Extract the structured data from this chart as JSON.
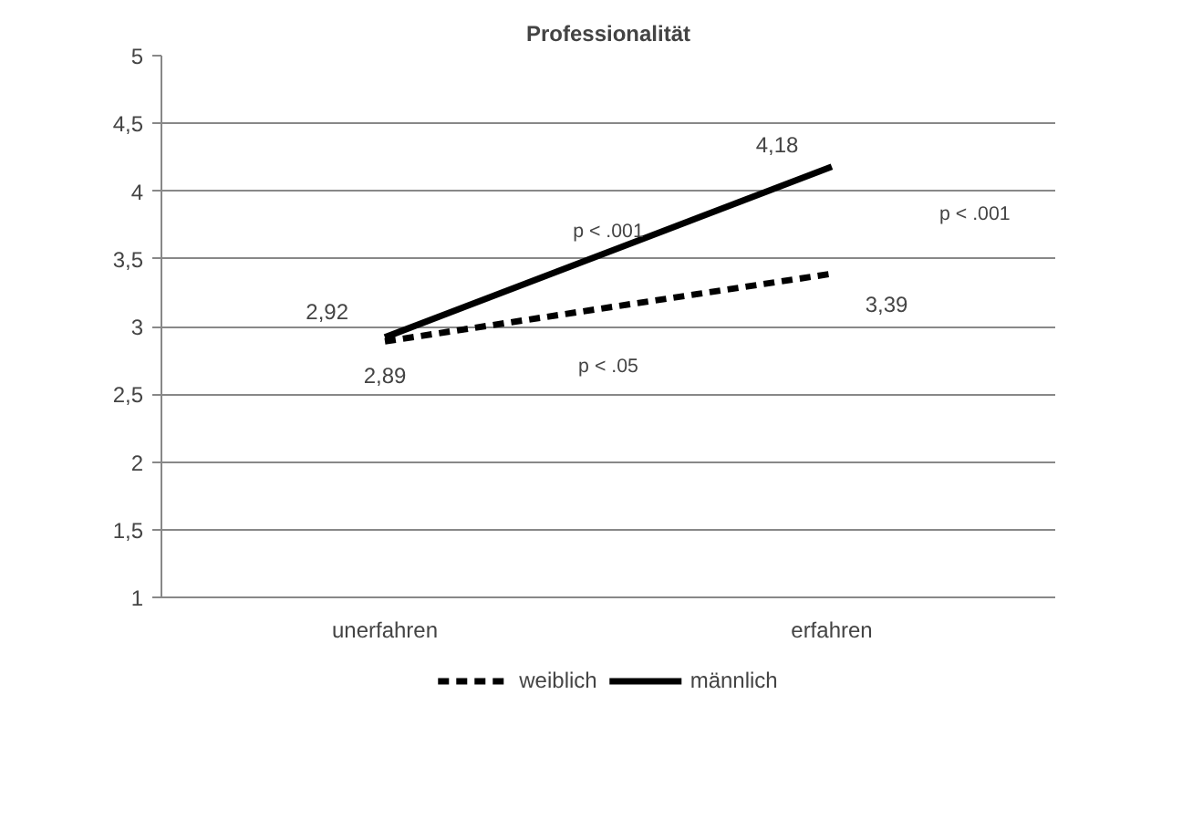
{
  "chart_data": {
    "type": "line",
    "title": "Professionalität",
    "categories": [
      "unerfahren",
      "erfahren"
    ],
    "series": [
      {
        "name": "weiblich",
        "color": "#000000",
        "line_style": "dashed",
        "values": [
          2.89,
          3.39
        ],
        "value_labels": [
          "2,89",
          "3,39"
        ]
      },
      {
        "name": "männlich",
        "color": "#000000",
        "line_style": "solid",
        "values": [
          2.92,
          4.18
        ],
        "value_labels": [
          "2,92",
          "4,18"
        ]
      }
    ],
    "ylim": [
      1,
      5
    ],
    "yticks": [
      1,
      {
        "value": 1.5,
        "label": "1,5"
      },
      2,
      {
        "value": 2.5,
        "label": "2,5"
      },
      3,
      {
        "value": 3.5,
        "label": "3,5"
      },
      4,
      {
        "value": 4.5,
        "label": "4,5"
      },
      5
    ],
    "grid": "y",
    "legend": "bottom",
    "marker": "none",
    "annotations": [
      "p < .001",
      "p < .05",
      "p < .001"
    ]
  }
}
